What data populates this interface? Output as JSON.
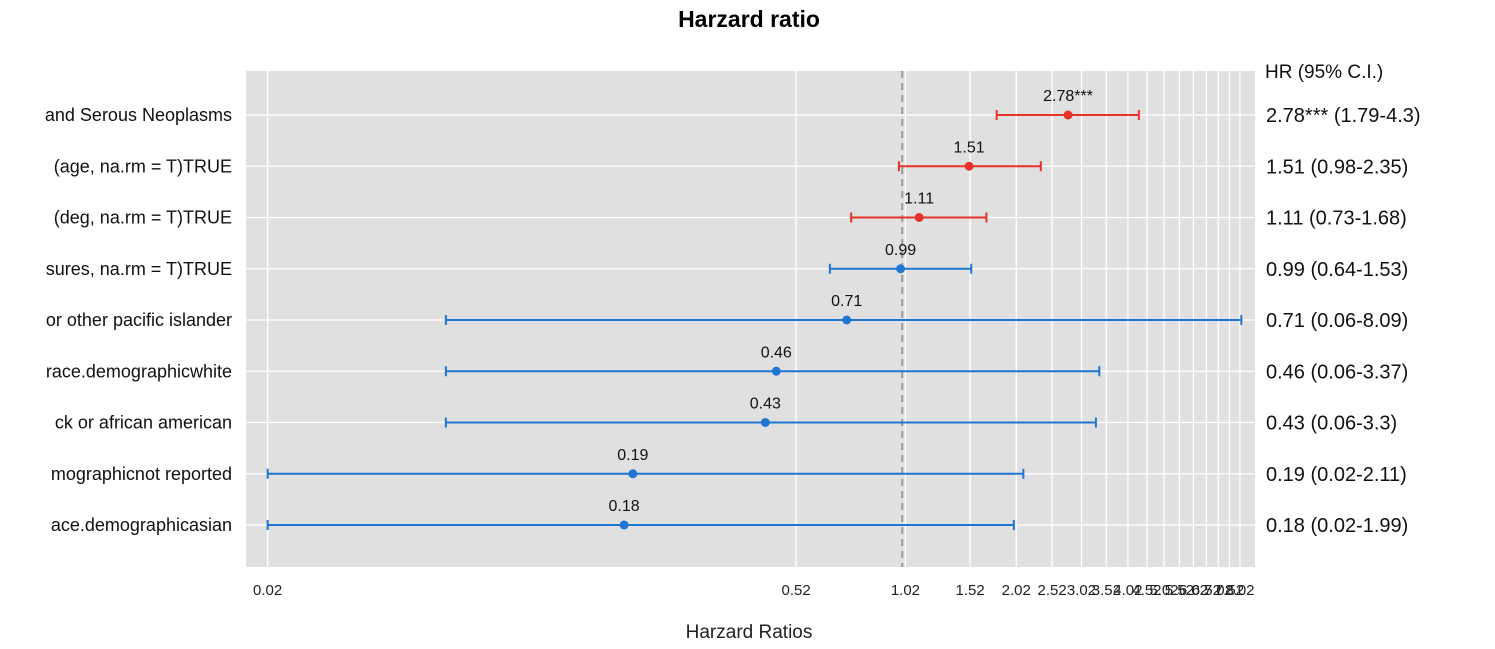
{
  "chart_data": {
    "type": "forest",
    "title": "Harzard ratio",
    "xlabel": "Harzard Ratios",
    "right_header": "HR (95% C.I.)",
    "x_scale": "log",
    "xlim": [
      0.0175,
      8.8
    ],
    "reference_line": 1,
    "x_ticks": [
      "0.02",
      "0.52",
      "1.02",
      "1.52",
      "2.02",
      "2.52",
      "3.02",
      "3.52",
      "4.02",
      "4.52",
      "5.02",
      "5.52",
      "6.02",
      "6.52",
      "7.02",
      "7.52",
      "8.02"
    ],
    "x_tick_values": [
      0.02,
      0.52,
      1.02,
      1.52,
      2.02,
      2.52,
      3.02,
      3.52,
      4.02,
      4.52,
      5.02,
      5.52,
      6.02,
      6.52,
      7.02,
      7.52,
      8.02
    ],
    "grid": true,
    "colors": {
      "above_one": "#e8332c",
      "below_one": "#1f76d2",
      "panel": "#e0e0e0",
      "grid": "#ffffff",
      "ref_line": "#9b9b9b"
    },
    "rows": [
      {
        "label": "and Serous Neoplasms",
        "hr": 2.78,
        "lo": 1.79,
        "hi": 4.3,
        "point_label": "2.78***",
        "hr_text": "2.78*** (1.79-4.3)"
      },
      {
        "label": "(age, na.rm = T)TRUE",
        "hr": 1.51,
        "lo": 0.98,
        "hi": 2.35,
        "point_label": "1.51",
        "hr_text": "1.51 (0.98-2.35)"
      },
      {
        "label": "(deg, na.rm = T)TRUE",
        "hr": 1.11,
        "lo": 0.73,
        "hi": 1.68,
        "point_label": "1.11",
        "hr_text": "1.11 (0.73-1.68)"
      },
      {
        "label": "sures, na.rm = T)TRUE",
        "hr": 0.99,
        "lo": 0.64,
        "hi": 1.53,
        "point_label": "0.99",
        "hr_text": "0.99 (0.64-1.53)"
      },
      {
        "label": "or other pacific islander",
        "hr": 0.71,
        "lo": 0.06,
        "hi": 8.09,
        "point_label": "0.71",
        "hr_text": "0.71 (0.06-8.09)"
      },
      {
        "label": "race.demographicwhite",
        "hr": 0.46,
        "lo": 0.06,
        "hi": 3.37,
        "point_label": "0.46",
        "hr_text": "0.46 (0.06-3.37)"
      },
      {
        "label": "ck or african american",
        "hr": 0.43,
        "lo": 0.06,
        "hi": 3.3,
        "point_label": "0.43",
        "hr_text": "0.43 (0.06-3.3)"
      },
      {
        "label": "mographicnot reported",
        "hr": 0.19,
        "lo": 0.02,
        "hi": 2.11,
        "point_label": "0.19",
        "hr_text": "0.19 (0.02-2.11)"
      },
      {
        "label": "ace.demographicasian",
        "hr": 0.18,
        "lo": 0.02,
        "hi": 1.99,
        "point_label": "0.18",
        "hr_text": "0.18 (0.02-1.99)"
      }
    ]
  }
}
